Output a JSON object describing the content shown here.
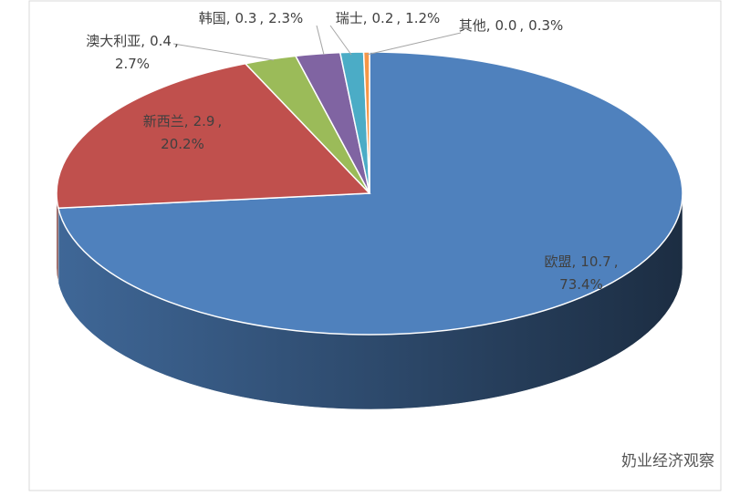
{
  "chart_data": {
    "type": "pie3d",
    "categories": [
      "欧盟",
      "新西兰",
      "澳大利亚",
      "韩国",
      "瑞士",
      "其他"
    ],
    "values": [
      10.7,
      2.9,
      0.4,
      0.3,
      0.2,
      0.0
    ],
    "value_labels": [
      "10.7",
      "2.9",
      "0.4",
      "0.3",
      "0.2",
      "0.0"
    ],
    "percentages": [
      73.4,
      20.2,
      2.7,
      2.3,
      1.2,
      0.3
    ],
    "percent_labels": [
      "73.4%",
      "20.2%",
      "2.7%",
      "2.3%",
      "1.2%",
      "0.3%"
    ],
    "separator": ",",
    "colors": [
      "#4f81bd",
      "#c0504d",
      "#9bbb59",
      "#8064a2",
      "#4bacc6",
      "#f79646"
    ],
    "watermark": "奶业经济观察"
  }
}
